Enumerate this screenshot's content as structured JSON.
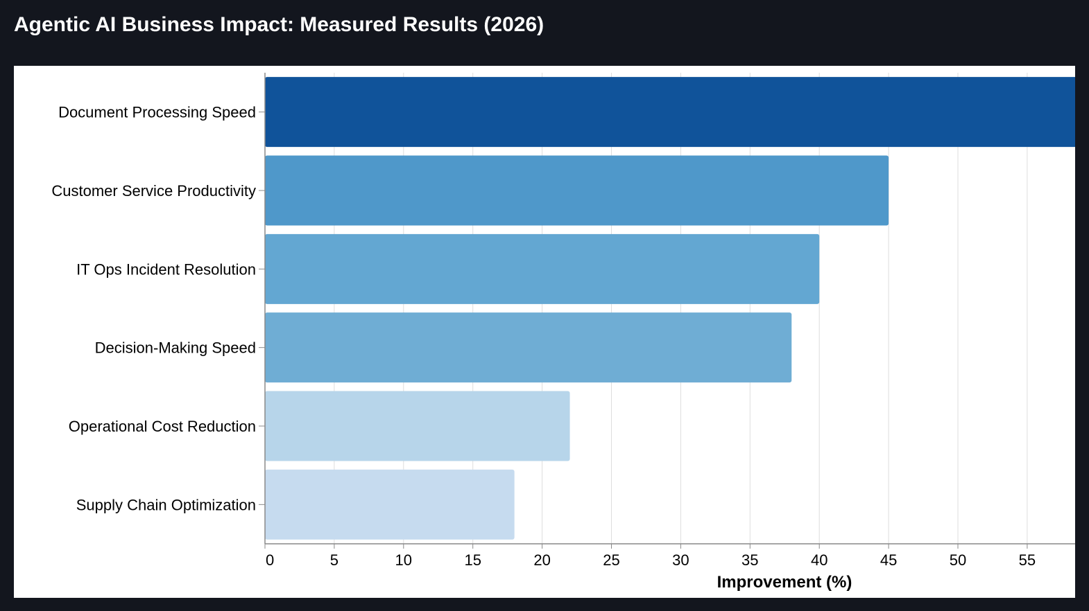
{
  "page": {
    "title": "Agentic AI Business Impact: Measured Results (2026)"
  },
  "chart_data": {
    "type": "bar",
    "orientation": "horizontal",
    "title": "Agentic AI Business Impact: Measured Results (2026)",
    "categories": [
      "Document Processing Speed",
      "Customer Service Productivity",
      "IT Ops Incident Resolution",
      "Decision-Making Speed",
      "Operational Cost Reduction",
      "Supply Chain Optimization"
    ],
    "values": [
      60,
      45,
      40,
      38,
      22,
      18
    ],
    "bar_colors": [
      "#10539a",
      "#4f98ca",
      "#63a7d2",
      "#6fadd4",
      "#b7d5ea",
      "#c6dbef"
    ],
    "xlabel": "Improvement (%)",
    "ylabel": "",
    "xlim": [
      0,
      58.5
    ],
    "xticks": [
      0,
      5,
      10,
      15,
      20,
      25,
      30,
      35,
      40,
      45,
      50,
      55
    ],
    "grid": true
  },
  "colors": {
    "page_background": "#13161e",
    "panel_background": "#ffffff",
    "title_text": "#ffffff",
    "grid": "#dddddd",
    "axis": "#888888"
  }
}
